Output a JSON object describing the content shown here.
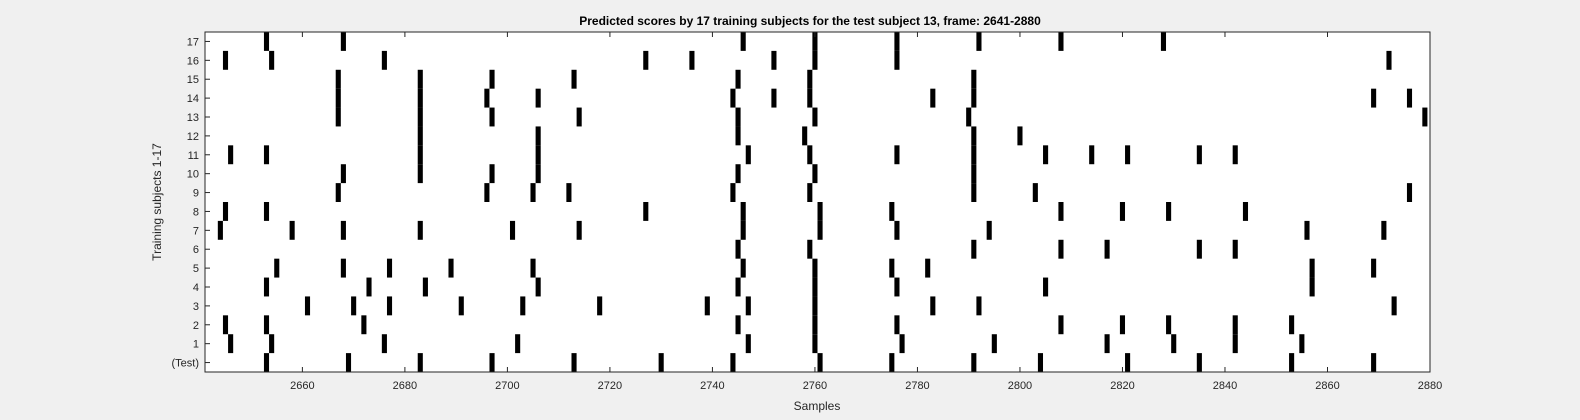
{
  "chart_data": {
    "type": "heatmap",
    "title": "Predicted scores by 17 training subjects for the test subject 13, frame: 2641-2880",
    "xlabel": "Samples",
    "ylabel": "Training subjects 1-17",
    "xlim": [
      2641,
      2880
    ],
    "xticks": [
      2660,
      2680,
      2700,
      2720,
      2740,
      2760,
      2780,
      2800,
      2820,
      2840,
      2860,
      2880
    ],
    "yticks": [
      "(Test)",
      "1",
      "2",
      "3",
      "4",
      "5",
      "6",
      "7",
      "8",
      "9",
      "10",
      "11",
      "12",
      "13",
      "14",
      "15",
      "16",
      "17"
    ],
    "grid": false,
    "colors": {
      "background": "#ffffff",
      "mark": "#000000"
    },
    "rows": [
      {
        "label": "(Test)",
        "samples": [
          2653,
          2669,
          2683,
          2697,
          2713,
          2730,
          2744,
          2761,
          2775,
          2791,
          2804,
          2821,
          2835,
          2853,
          2869
        ]
      },
      {
        "label": "1",
        "samples": [
          2646,
          2654,
          2676,
          2702,
          2747,
          2760,
          2777,
          2795,
          2817,
          2830,
          2842,
          2855
        ]
      },
      {
        "label": "2",
        "samples": [
          2645,
          2653,
          2672,
          2745,
          2760,
          2776,
          2808,
          2820,
          2829,
          2842,
          2853
        ]
      },
      {
        "label": "3",
        "samples": [
          2661,
          2670,
          2677,
          2691,
          2703,
          2718,
          2739,
          2747,
          2760,
          2783,
          2792,
          2873
        ]
      },
      {
        "label": "4",
        "samples": [
          2653,
          2673,
          2684,
          2706,
          2745,
          2760,
          2776,
          2805,
          2857
        ]
      },
      {
        "label": "5",
        "samples": [
          2655,
          2668,
          2677,
          2689,
          2705,
          2746,
          2760,
          2775,
          2782,
          2857,
          2869
        ]
      },
      {
        "label": "6",
        "samples": [
          2745,
          2759,
          2791,
          2808,
          2817,
          2835,
          2842
        ]
      },
      {
        "label": "7",
        "samples": [
          2644,
          2658,
          2668,
          2683,
          2701,
          2714,
          2746,
          2761,
          2776,
          2794,
          2856,
          2871
        ]
      },
      {
        "label": "8",
        "samples": [
          2645,
          2653,
          2727,
          2746,
          2761,
          2775,
          2808,
          2820,
          2829,
          2844
        ]
      },
      {
        "label": "9",
        "samples": [
          2667,
          2696,
          2705,
          2712,
          2744,
          2759,
          2791,
          2803,
          2876
        ]
      },
      {
        "label": "10",
        "samples": [
          2668,
          2683,
          2697,
          2706,
          2745,
          2760,
          2791
        ]
      },
      {
        "label": "11",
        "samples": [
          2646,
          2653,
          2683,
          2706,
          2747,
          2759,
          2776,
          2791,
          2805,
          2814,
          2821,
          2835,
          2842
        ]
      },
      {
        "label": "12",
        "samples": [
          2683,
          2706,
          2745,
          2758,
          2791,
          2800
        ]
      },
      {
        "label": "13",
        "samples": [
          2667,
          2683,
          2697,
          2714,
          2745,
          2760,
          2790,
          2879
        ]
      },
      {
        "label": "14",
        "samples": [
          2667,
          2683,
          2696,
          2706,
          2744,
          2752,
          2759,
          2783,
          2791,
          2869,
          2876
        ]
      },
      {
        "label": "15",
        "samples": [
          2667,
          2683,
          2697,
          2713,
          2745,
          2759,
          2791
        ]
      },
      {
        "label": "16",
        "samples": [
          2645,
          2654,
          2676,
          2727,
          2736,
          2752,
          2760,
          2776,
          2872
        ]
      },
      {
        "label": "17",
        "samples": [
          2653,
          2668,
          2746,
          2760,
          2776,
          2792,
          2808,
          2828
        ]
      }
    ]
  }
}
